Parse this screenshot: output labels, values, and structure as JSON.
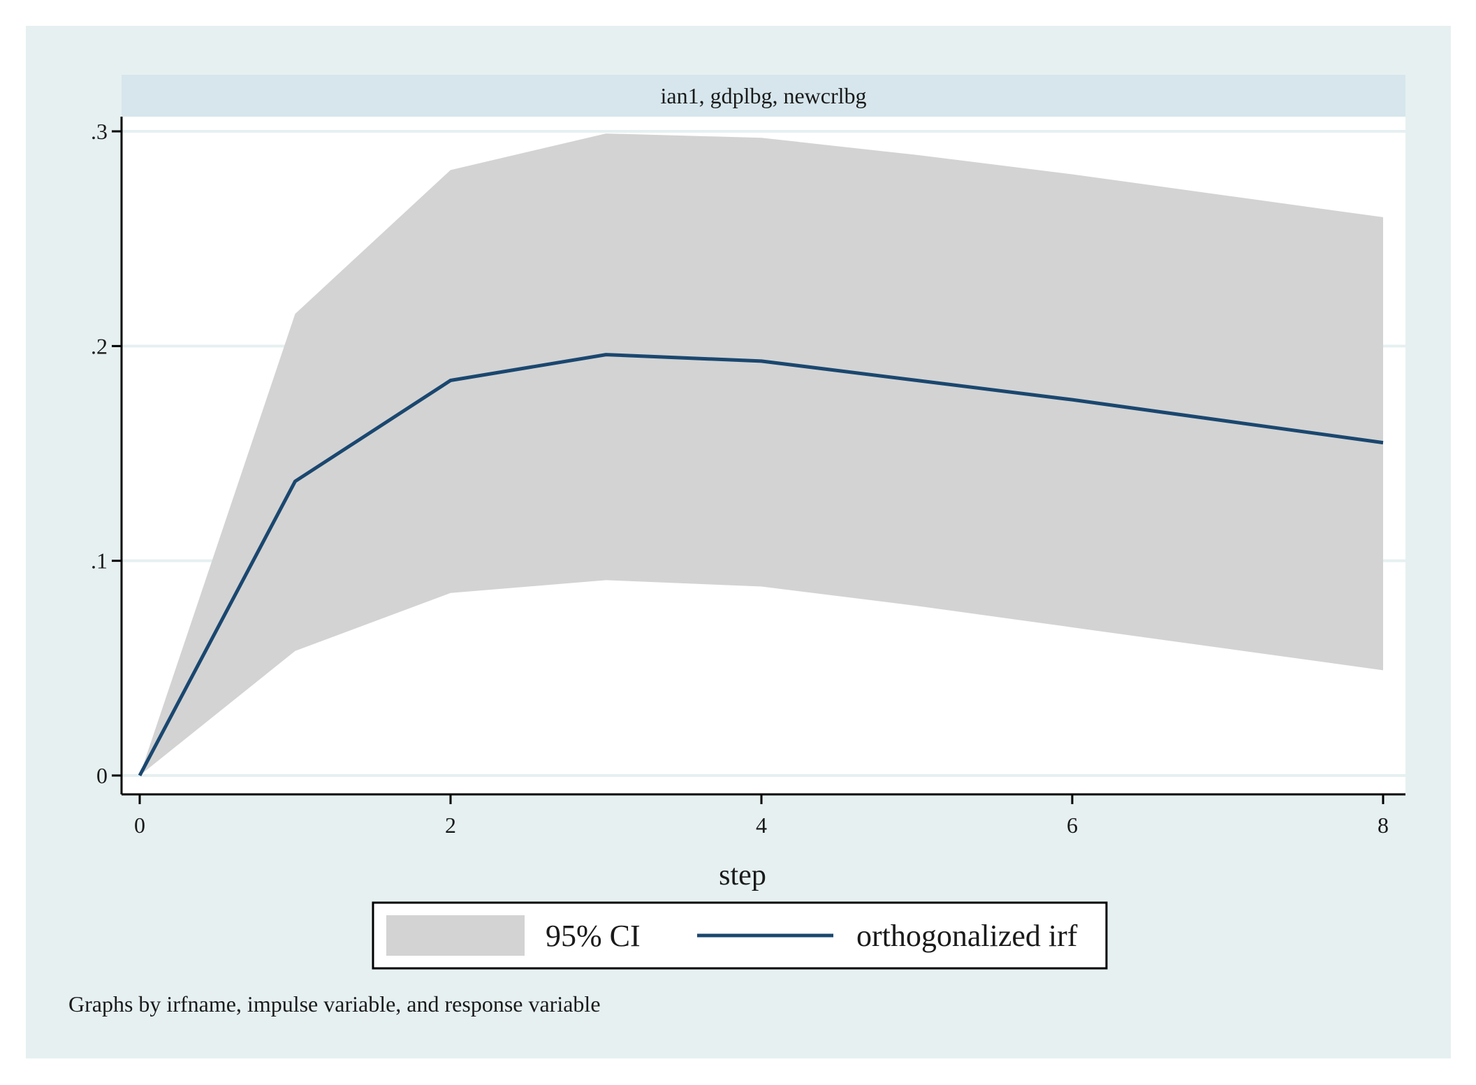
{
  "chart_data": {
    "type": "area",
    "panel_title": "ian1, gdplbg, newcrlbg",
    "xlabel": "step",
    "ylabel": "",
    "xlim": [
      0,
      8
    ],
    "ylim": [
      0,
      0.3
    ],
    "x_ticks": [
      0,
      2,
      4,
      6,
      8
    ],
    "x_tick_labels": [
      "0",
      "2",
      "4",
      "6",
      "8"
    ],
    "y_ticks": [
      0,
      0.1,
      0.2,
      0.3
    ],
    "y_tick_labels": [
      "0",
      ".1",
      ".2",
      ".3"
    ],
    "grid": true,
    "x": [
      0,
      1,
      2,
      3,
      4,
      5,
      6,
      7,
      8
    ],
    "series": [
      {
        "name": "orthogonalized irf",
        "kind": "line",
        "color": "#1a476f",
        "values": [
          0,
          0.137,
          0.184,
          0.196,
          0.193,
          0.184,
          0.175,
          0.165,
          0.155
        ]
      },
      {
        "name": "95% CI",
        "kind": "band",
        "color": "#d3d3d3",
        "lower": [
          0,
          0.058,
          0.085,
          0.091,
          0.088,
          0.079,
          0.069,
          0.059,
          0.049
        ],
        "upper": [
          0,
          0.215,
          0.282,
          0.299,
          0.297,
          0.289,
          0.28,
          0.27,
          0.26
        ]
      }
    ],
    "legend": {
      "position": "bottom",
      "entries": [
        "95% CI",
        "orthogonalized irf"
      ]
    },
    "note": "Graphs by irfname, impulse variable, and response variable"
  },
  "colors": {
    "outer_background": "#e6f0f1",
    "plot_background": "#ffffff",
    "strip_background": "#d6e6ec",
    "gridline": "#e6f0f1",
    "axis": "#000000"
  }
}
